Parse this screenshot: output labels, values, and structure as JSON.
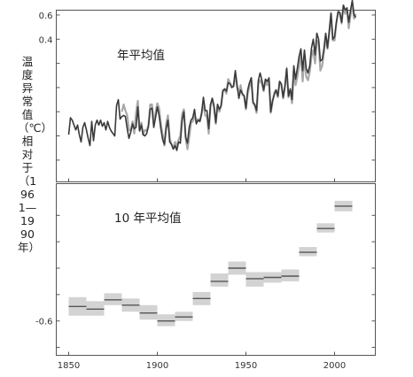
{
  "chart_data": [
    {
      "type": "line",
      "title": "年平均值",
      "ylabel": "温度异常值（℃）相对于（1961—1990年）",
      "xlim": [
        1843,
        2023
      ],
      "ylim": [
        -0.78,
        0.64
      ],
      "yticks": [
        "0.6",
        "0.4",
        "",
        "",
        "",
        "",
        "",
        ""
      ],
      "ytick_values": [
        0.6,
        0.4,
        0.2,
        0.0,
        -0.2,
        -0.4,
        -0.6
      ],
      "series": [
        {
          "color": "#3a3a3a",
          "x": [
            1850,
            1851,
            1852,
            1853,
            1854,
            1855,
            1856,
            1857,
            1858,
            1859,
            1860,
            1861,
            1862,
            1863,
            1864,
            1865,
            1866,
            1867,
            1868,
            1869,
            1870,
            1871,
            1872,
            1873,
            1874,
            1875,
            1876,
            1877,
            1878,
            1879,
            1880,
            1881,
            1882,
            1883,
            1884,
            1885,
            1886,
            1887,
            1888,
            1889,
            1890,
            1891,
            1892,
            1893,
            1894,
            1895,
            1896,
            1897,
            1898,
            1899,
            1900,
            1901,
            1902,
            1903,
            1904,
            1905,
            1906,
            1907,
            1908,
            1909,
            1910,
            1911,
            1912,
            1913,
            1914,
            1915,
            1916,
            1917,
            1918,
            1919,
            1920,
            1921,
            1922,
            1923,
            1924,
            1925,
            1926,
            1927,
            1928,
            1929,
            1930,
            1931,
            1932,
            1933,
            1934,
            1935,
            1936,
            1937,
            1938,
            1939,
            1940,
            1941,
            1942,
            1943,
            1944,
            1945,
            1946,
            1947,
            1948,
            1949,
            1950,
            1951,
            1952,
            1953,
            1954,
            1955,
            1956,
            1957,
            1958,
            1959,
            1960,
            1961,
            1962,
            1963,
            1964,
            1965,
            1966,
            1967,
            1968,
            1969,
            1970,
            1971,
            1972,
            1973,
            1974,
            1975,
            1976,
            1977,
            1978,
            1979,
            1980,
            1981,
            1982,
            1983,
            1984,
            1985,
            1986,
            1987,
            1988,
            1989,
            1990,
            1991,
            1992,
            1993,
            1994,
            1995,
            1996,
            1997,
            1998,
            1999,
            2000,
            2001,
            2002,
            2003,
            2004,
            2005,
            2006,
            2007,
            2008,
            2009,
            2010,
            2011,
            2012
          ],
          "y": [
            -0.39,
            -0.25,
            -0.27,
            -0.31,
            -0.35,
            -0.31,
            -0.39,
            -0.45,
            -0.33,
            -0.29,
            -0.35,
            -0.42,
            -0.48,
            -0.28,
            -0.44,
            -0.31,
            -0.27,
            -0.31,
            -0.27,
            -0.32,
            -0.29,
            -0.35,
            -0.28,
            -0.33,
            -0.36,
            -0.38,
            -0.4,
            -0.15,
            -0.1,
            -0.26,
            -0.24,
            -0.23,
            -0.24,
            -0.34,
            -0.42,
            -0.37,
            -0.3,
            -0.34,
            -0.33,
            -0.16,
            -0.36,
            -0.31,
            -0.39,
            -0.4,
            -0.38,
            -0.32,
            -0.18,
            -0.17,
            -0.33,
            -0.25,
            -0.16,
            -0.23,
            -0.34,
            -0.43,
            -0.47,
            -0.34,
            -0.27,
            -0.45,
            -0.47,
            -0.51,
            -0.48,
            -0.52,
            -0.45,
            -0.46,
            -0.27,
            -0.2,
            -0.41,
            -0.46,
            -0.33,
            -0.27,
            -0.25,
            -0.18,
            -0.3,
            -0.27,
            -0.28,
            -0.21,
            -0.08,
            -0.19,
            -0.19,
            -0.34,
            -0.14,
            -0.09,
            -0.15,
            -0.29,
            -0.14,
            -0.18,
            -0.15,
            -0.03,
            -0.01,
            -0.03,
            0.04,
            0.03,
            0.0,
            0.01,
            0.14,
            0.02,
            -0.09,
            -0.02,
            -0.05,
            -0.07,
            -0.17,
            -0.02,
            0.04,
            0.08,
            -0.12,
            -0.14,
            -0.19,
            0.06,
            0.12,
            0.06,
            -0.02,
            0.07,
            0.05,
            0.08,
            -0.2,
            -0.11,
            -0.06,
            -0.02,
            -0.07,
            0.05,
            0.03,
            -0.08,
            0.01,
            0.16,
            -0.07,
            -0.01,
            -0.1,
            0.18,
            0.07,
            0.16,
            0.26,
            0.32,
            0.14,
            0.31,
            0.16,
            0.12,
            0.18,
            0.33,
            0.4,
            0.27,
            0.45,
            0.4,
            0.22,
            0.23,
            0.32,
            0.45,
            0.33,
            0.47,
            0.61,
            0.4,
            0.42,
            0.54,
            0.63,
            0.62,
            0.54,
            0.68,
            0.64,
            0.66,
            0.54,
            0.64,
            0.72,
            0.6,
            0.58
          ],
          "name": ""
        },
        {
          "color": "#a8a8a8",
          "x": [
            1880,
            1881,
            1882,
            1883,
            1884,
            1885,
            1886,
            1887,
            1888,
            1889,
            1890,
            1891,
            1892,
            1893,
            1894,
            1895,
            1896,
            1897,
            1898,
            1899,
            1900,
            1901,
            1902,
            1903,
            1904,
            1905,
            1906,
            1907,
            1908,
            1909,
            1910,
            1911,
            1912,
            1913,
            1914,
            1915,
            1916,
            1917,
            1918,
            1919,
            1920,
            1921,
            1922,
            1923,
            1924,
            1925,
            1926,
            1927,
            1928,
            1929,
            1930,
            1931,
            1932,
            1933,
            1934,
            1935,
            1936,
            1937,
            1938,
            1939,
            1940,
            1941,
            1942,
            1943,
            1944,
            1945,
            1946,
            1947,
            1948,
            1949,
            1950,
            1951,
            1952,
            1953,
            1954,
            1955,
            1956,
            1957,
            1958,
            1959,
            1960,
            1961,
            1962,
            1963,
            1964,
            1965,
            1966,
            1967,
            1968,
            1969,
            1970,
            1971,
            1972,
            1973,
            1974,
            1975,
            1976,
            1977,
            1978,
            1979,
            1980,
            1981,
            1982,
            1983,
            1984,
            1985,
            1986,
            1987,
            1988,
            1989,
            1990,
            1991,
            1992,
            1993,
            1994,
            1995,
            1996,
            1997,
            1998,
            1999,
            2000,
            2001,
            2002,
            2003,
            2004,
            2005,
            2006,
            2007,
            2008,
            2009,
            2010,
            2011,
            2012
          ],
          "y": [
            -0.2,
            -0.14,
            -0.19,
            -0.23,
            -0.35,
            -0.36,
            -0.28,
            -0.38,
            -0.21,
            -0.11,
            -0.35,
            -0.29,
            -0.39,
            -0.35,
            -0.36,
            -0.31,
            -0.14,
            -0.14,
            -0.3,
            -0.21,
            -0.13,
            -0.17,
            -0.3,
            -0.39,
            -0.48,
            -0.3,
            -0.23,
            -0.42,
            -0.47,
            -0.5,
            -0.45,
            -0.49,
            -0.43,
            -0.4,
            -0.22,
            -0.18,
            -0.42,
            -0.51,
            -0.41,
            -0.29,
            -0.28,
            -0.22,
            -0.29,
            -0.26,
            -0.28,
            -0.22,
            -0.12,
            -0.23,
            -0.24,
            -0.38,
            -0.16,
            -0.09,
            -0.17,
            -0.3,
            -0.14,
            -0.2,
            -0.15,
            -0.02,
            -0.02,
            -0.05,
            0.07,
            0.04,
            0.01,
            0.01,
            0.12,
            0.0,
            -0.04,
            0.02,
            -0.06,
            -0.07,
            -0.18,
            -0.05,
            0.01,
            0.08,
            -0.13,
            -0.15,
            -0.21,
            0.03,
            0.06,
            0.03,
            -0.03,
            0.06,
            0.02,
            0.05,
            -0.21,
            -0.12,
            -0.04,
            -0.02,
            -0.08,
            0.05,
            0.02,
            -0.09,
            0.01,
            0.15,
            -0.08,
            -0.02,
            -0.13,
            0.14,
            0.02,
            0.09,
            0.18,
            0.27,
            0.05,
            0.26,
            0.09,
            0.06,
            0.13,
            0.26,
            0.31,
            0.2,
            0.39,
            0.37,
            0.14,
            0.18,
            0.29,
            0.43,
            0.32,
            0.44,
            0.62,
            0.39,
            0.39,
            0.53,
            0.62,
            0.61,
            0.53,
            0.68,
            0.61,
            0.64,
            0.49,
            0.6,
            0.7,
            0.57,
            0.61
          ],
          "name": ""
        }
      ]
    },
    {
      "type": "box",
      "title": "10 年平均值",
      "xlim": [
        1843,
        2023
      ],
      "ylim": [
        -0.66,
        0.64
      ],
      "xticks": [
        1850,
        1900,
        1950,
        2000
      ],
      "yticks": [
        "",
        "",
        "",
        "",
        "-0.6"
      ],
      "ytick_values": [
        0.4,
        0.2,
        0.0,
        -0.2,
        -0.4,
        -0.6
      ],
      "decades": [
        1850,
        1860,
        1870,
        1880,
        1890,
        1900,
        1910,
        1920,
        1930,
        1940,
        1950,
        1960,
        1970,
        1980,
        1990,
        2000
      ],
      "means": [
        -0.29,
        -0.31,
        -0.24,
        -0.28,
        -0.34,
        -0.4,
        -0.37,
        -0.23,
        -0.1,
        0.0,
        -0.08,
        -0.07,
        -0.06,
        0.12,
        0.3,
        0.47
      ],
      "lower": [
        -0.36,
        -0.36,
        -0.28,
        -0.33,
        -0.39,
        -0.44,
        -0.4,
        -0.28,
        -0.14,
        -0.05,
        -0.14,
        -0.11,
        -0.1,
        0.09,
        0.27,
        0.43
      ],
      "upper": [
        -0.22,
        -0.25,
        -0.19,
        -0.23,
        -0.28,
        -0.35,
        -0.33,
        -0.18,
        -0.04,
        0.05,
        -0.03,
        -0.03,
        -0.01,
        0.16,
        0.34,
        0.51
      ]
    }
  ],
  "axis_label": "温度异常值（℃）相对于（1961—1990年）"
}
